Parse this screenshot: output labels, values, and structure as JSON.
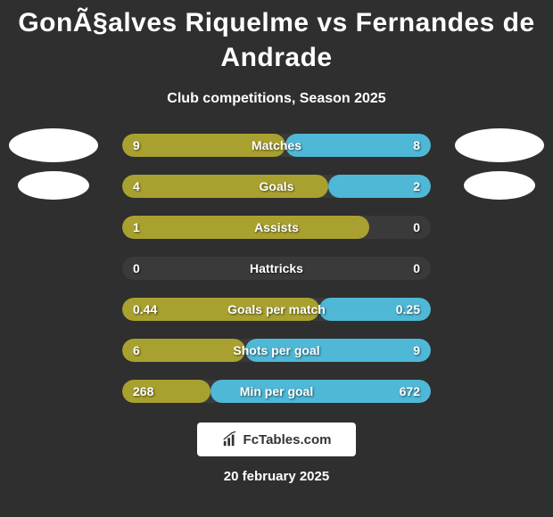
{
  "title": "GonÃ§alves Riquelme vs Fernandes de Andrade",
  "subtitle": "Club competitions, Season 2025",
  "colors": {
    "left_bar": "#a9a12f",
    "right_bar": "#4fb8d6",
    "neutral_bar": "#3a3a3a",
    "background": "#2f2f2f"
  },
  "stats": [
    {
      "label": "Matches",
      "left_value": "9",
      "right_value": "8",
      "left_pct": 52.9,
      "right_pct": 47.1,
      "left_color": "#a9a12f",
      "right_color": "#4fb8d6"
    },
    {
      "label": "Goals",
      "left_value": "4",
      "right_value": "2",
      "left_pct": 66.7,
      "right_pct": 33.3,
      "left_color": "#a9a12f",
      "right_color": "#4fb8d6"
    },
    {
      "label": "Assists",
      "left_value": "1",
      "right_value": "0",
      "left_pct": 80,
      "right_pct": 20,
      "left_color": "#a9a12f",
      "right_color": "#3a3a3a"
    },
    {
      "label": "Hattricks",
      "left_value": "0",
      "right_value": "0",
      "left_pct": 0,
      "right_pct": 0,
      "left_color": "#3a3a3a",
      "right_color": "#3a3a3a"
    },
    {
      "label": "Goals per match",
      "left_value": "0.44",
      "right_value": "0.25",
      "left_pct": 63.8,
      "right_pct": 36.2,
      "left_color": "#a9a12f",
      "right_color": "#4fb8d6"
    },
    {
      "label": "Shots per goal",
      "left_value": "6",
      "right_value": "9",
      "left_pct": 40,
      "right_pct": 60,
      "left_color": "#a9a12f",
      "right_color": "#4fb8d6"
    },
    {
      "label": "Min per goal",
      "left_value": "268",
      "right_value": "672",
      "left_pct": 28.5,
      "right_pct": 71.5,
      "left_color": "#a9a12f",
      "right_color": "#4fb8d6"
    }
  ],
  "footer": {
    "brand": "FcTables.com",
    "date": "20 february 2025"
  }
}
